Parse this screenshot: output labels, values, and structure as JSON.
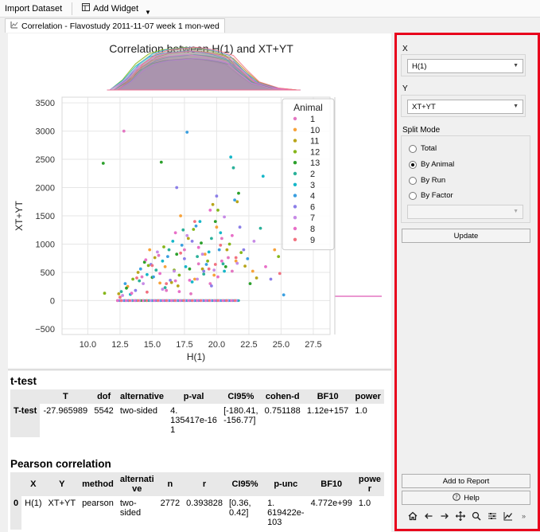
{
  "toolbar": {
    "import_label": "Import Dataset",
    "add_widget_label": "Add Widget"
  },
  "tab": {
    "label": "Correlation - Flavostudy 2011-11-07 week 1 mon-wed"
  },
  "chart_data": {
    "type": "scatter",
    "title": "Correlation between H(1) and XT+YT",
    "xlabel": "H(1)",
    "ylabel": "XT+YT",
    "xlim": [
      8.0,
      28.8
    ],
    "ylim": [
      -600,
      3600
    ],
    "x_ticks": [
      "10.0",
      "12.5",
      "15.0",
      "17.5",
      "20.0",
      "22.5",
      "25.0",
      "27.5"
    ],
    "y_ticks": [
      "3500",
      "3000",
      "2500",
      "2000",
      "1500",
      "1000",
      "500",
      "0",
      "−500"
    ],
    "grid": true,
    "legend_position": "top-right",
    "legend_title": "Animal",
    "series": [
      {
        "name": "1",
        "color": "#e377c2",
        "points": [
          [
            12.8,
            3000
          ],
          [
            14.2,
            420
          ],
          [
            15.5,
            800
          ],
          [
            16.8,
            350
          ],
          [
            17.5,
            900
          ],
          [
            18.6,
            650
          ],
          [
            19.5,
            300
          ],
          [
            20.4,
            1100
          ],
          [
            21.2,
            520
          ],
          [
            16.1,
            180
          ],
          [
            18.0,
            120
          ],
          [
            20.9,
            760
          ]
        ]
      },
      {
        "name": "10",
        "color": "#f7a23a",
        "points": [
          [
            13.1,
            250
          ],
          [
            14.8,
            900
          ],
          [
            16.0,
            600
          ],
          [
            17.2,
            1500
          ],
          [
            18.3,
            380
          ],
          [
            19.1,
            820
          ],
          [
            20.0,
            1300
          ],
          [
            21.5,
            700
          ],
          [
            22.8,
            520
          ],
          [
            24.5,
            900
          ],
          [
            15.6,
            310
          ],
          [
            19.8,
            450
          ]
        ]
      },
      {
        "name": "11",
        "color": "#b8a51b",
        "points": [
          [
            12.4,
            120
          ],
          [
            13.9,
            500
          ],
          [
            15.2,
            760
          ],
          [
            16.5,
            320
          ],
          [
            17.8,
            1100
          ],
          [
            18.9,
            560
          ],
          [
            19.7,
            1700
          ],
          [
            20.8,
            900
          ],
          [
            21.6,
            1750
          ],
          [
            23.1,
            400
          ],
          [
            17.0,
            260
          ],
          [
            22.2,
            610
          ]
        ]
      },
      {
        "name": "12",
        "color": "#86b61b",
        "points": [
          [
            11.3,
            130
          ],
          [
            13.5,
            380
          ],
          [
            14.7,
            620
          ],
          [
            15.9,
            950
          ],
          [
            17.1,
            450
          ],
          [
            18.2,
            1260
          ],
          [
            19.3,
            700
          ],
          [
            20.1,
            1600
          ],
          [
            21.0,
            1000
          ],
          [
            21.9,
            850
          ],
          [
            24.8,
            780
          ],
          [
            16.7,
            540
          ]
        ]
      },
      {
        "name": "13",
        "color": "#2ca02c",
        "points": [
          [
            11.2,
            2430
          ],
          [
            13.0,
            220
          ],
          [
            14.4,
            680
          ],
          [
            15.7,
            2450
          ],
          [
            16.9,
            820
          ],
          [
            17.9,
            560
          ],
          [
            18.8,
            1020
          ],
          [
            19.9,
            1400
          ],
          [
            20.7,
            600
          ],
          [
            21.7,
            1900
          ],
          [
            22.6,
            300
          ],
          [
            15.0,
            410
          ]
        ]
      },
      {
        "name": "2",
        "color": "#2bb19a",
        "points": [
          [
            12.6,
            160
          ],
          [
            14.0,
            350
          ],
          [
            15.3,
            540
          ],
          [
            16.3,
            900
          ],
          [
            17.4,
            1250
          ],
          [
            18.5,
            780
          ],
          [
            19.6,
            1100
          ],
          [
            20.5,
            650
          ],
          [
            21.3,
            2350
          ],
          [
            23.4,
            1280
          ],
          [
            16.0,
            230
          ],
          [
            19.0,
            470
          ]
        ]
      },
      {
        "name": "3",
        "color": "#16b7c9",
        "points": [
          [
            13.3,
            110
          ],
          [
            14.6,
            460
          ],
          [
            15.8,
            700
          ],
          [
            16.6,
            1050
          ],
          [
            17.6,
            600
          ],
          [
            18.7,
            1400
          ],
          [
            19.4,
            860
          ],
          [
            20.3,
            1200
          ],
          [
            21.1,
            2540
          ],
          [
            23.6,
            2200
          ],
          [
            18.1,
            330
          ],
          [
            20.6,
            520
          ]
        ]
      },
      {
        "name": "4",
        "color": "#3a9fe0",
        "points": [
          [
            12.9,
            300
          ],
          [
            14.1,
            560
          ],
          [
            15.1,
            420
          ],
          [
            16.2,
            780
          ],
          [
            17.3,
            980
          ],
          [
            18.4,
            1320
          ],
          [
            19.2,
            640
          ],
          [
            20.2,
            900
          ],
          [
            21.4,
            1780
          ],
          [
            25.2,
            100
          ],
          [
            17.7,
            2980
          ],
          [
            22.4,
            740
          ]
        ]
      },
      {
        "name": "6",
        "color": "#8c7fe8",
        "points": [
          [
            13.7,
            180
          ],
          [
            14.9,
            640
          ],
          [
            16.4,
            360
          ],
          [
            17.5,
            740
          ],
          [
            18.1,
            1050
          ],
          [
            19.0,
            520
          ],
          [
            20.0,
            1850
          ],
          [
            21.8,
            1300
          ],
          [
            22.1,
            900
          ],
          [
            24.2,
            380
          ],
          [
            16.9,
            2000
          ],
          [
            19.6,
            260
          ]
        ]
      },
      {
        "name": "7",
        "color": "#c78be6",
        "points": [
          [
            12.7,
            90
          ],
          [
            14.3,
            300
          ],
          [
            15.4,
            860
          ],
          [
            16.7,
            520
          ],
          [
            17.7,
            1150
          ],
          [
            18.9,
            820
          ],
          [
            19.8,
            540
          ],
          [
            20.6,
            1480
          ],
          [
            21.6,
            660
          ],
          [
            22.9,
            1050
          ],
          [
            15.8,
            200
          ],
          [
            18.5,
            380
          ]
        ]
      },
      {
        "name": "8",
        "color": "#e86fc8",
        "points": [
          [
            13.4,
            130
          ],
          [
            14.5,
            720
          ],
          [
            15.6,
            480
          ],
          [
            16.8,
            1200
          ],
          [
            17.9,
            360
          ],
          [
            18.6,
            940
          ],
          [
            19.5,
            1600
          ],
          [
            20.4,
            700
          ],
          [
            21.2,
            1150
          ],
          [
            23.8,
            600
          ],
          [
            17.1,
            160
          ],
          [
            20.1,
            420
          ]
        ]
      },
      {
        "name": "9",
        "color": "#f27280",
        "points": [
          [
            12.5,
            60
          ],
          [
            13.8,
            400
          ],
          [
            15.0,
            620
          ],
          [
            16.1,
            300
          ],
          [
            17.2,
            840
          ],
          [
            18.3,
            1400
          ],
          [
            19.4,
            560
          ],
          [
            20.3,
            980
          ],
          [
            21.5,
            760
          ],
          [
            24.9,
            480
          ],
          [
            14.6,
            150
          ],
          [
            19.9,
            640
          ]
        ]
      }
    ]
  },
  "ttest": {
    "title": "t-test",
    "columns": [
      "",
      "T",
      "dof",
      "alternative",
      "p-val",
      "CI95%",
      "cohen-d",
      "BF10",
      "power"
    ],
    "row_label": "T-test",
    "values": [
      "-27.965989",
      "5542",
      "two-sided",
      "4.\n135417e-16\n1",
      "[-180.41,\n-156.77]",
      "0.751188",
      "1.12e+157",
      "1.0"
    ]
  },
  "pearson": {
    "title": "Pearson correlation",
    "columns": [
      "",
      "X",
      "Y",
      "method",
      "alternati\nve",
      "n",
      "r",
      "CI95%",
      "p-unc",
      "BF10",
      "powe\nr"
    ],
    "row_label": "0",
    "values": [
      "H(1)",
      "XT+YT",
      "pearson",
      "two-\nsided",
      "2772",
      "0.393828",
      "[0.36, 0.42]",
      "1.\n619422e-\n103",
      "4.772e+99",
      "1.0"
    ]
  },
  "side": {
    "x_label": "X",
    "x_value": "H(1)",
    "y_label": "Y",
    "y_value": "XT+YT",
    "split_label": "Split Mode",
    "split_options": [
      "Total",
      "By Animal",
      "By Run",
      "By Factor"
    ],
    "split_selected": "By Animal",
    "factor_value": "",
    "update_label": "Update",
    "add_report_label": "Add to Report",
    "help_label": "Help"
  }
}
